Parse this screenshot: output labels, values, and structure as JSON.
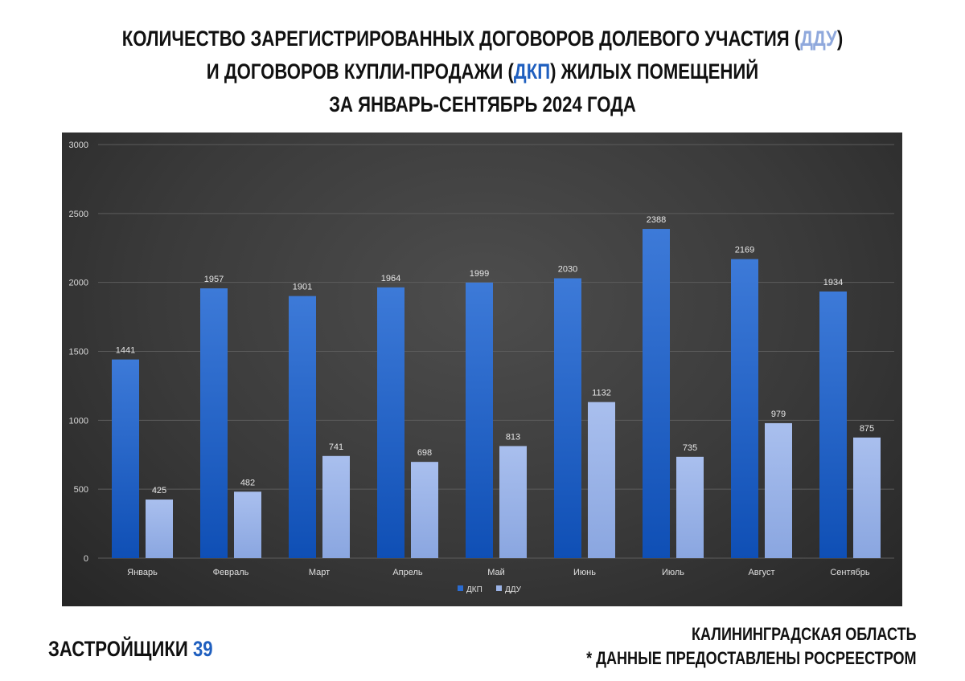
{
  "title": {
    "line1_pre": "КОЛИЧЕСТВО ЗАРЕГИСТРИРОВАННЫХ ДОГОВОРОВ ДОЛЕВОГО УЧАСТИЯ (",
    "line1_hl": "ДДУ",
    "line1_post": ")",
    "line2_pre": "И ДОГОВОРОВ КУПЛИ-ПРОДАЖИ (",
    "line2_hl": "ДКП",
    "line2_post": ") ЖИЛЫХ ПОМЕЩЕНИЙ",
    "line3": "ЗА ЯНВАРЬ-СЕНТЯБРЬ 2024 ГОДА"
  },
  "footer": {
    "brand_text": "ЗАСТРОЙЩИКИ",
    "brand_number": "39",
    "region": "КАЛИНИНГРАДСКАЯ ОБЛАСТЬ",
    "source_note": "* ДАННЫЕ ПРЕДОСТАВЛЕНЫ РОСРЕЕСТРОМ"
  },
  "colors": {
    "dkp": "#2a6bd0",
    "ddu": "#9bb3e6",
    "title_dkp": "#1f5fbf",
    "title_ddu": "#8fa8dc"
  },
  "chart_data": {
    "type": "bar",
    "categories": [
      "Январь",
      "Февраль",
      "Март",
      "Апрель",
      "Май",
      "Июнь",
      "Июль",
      "Август",
      "Сентябрь"
    ],
    "series": [
      {
        "name": "ДКП",
        "values": [
          1441,
          1957,
          1901,
          1964,
          1999,
          2030,
          2388,
          2169,
          1934
        ]
      },
      {
        "name": "ДДУ",
        "values": [
          425,
          482,
          741,
          698,
          813,
          1132,
          735,
          979,
          875
        ]
      }
    ],
    "ylim": [
      0,
      3000
    ],
    "yticks": [
      0,
      500,
      1000,
      1500,
      2000,
      2500,
      3000
    ],
    "grid": true,
    "legend": "bottom-center",
    "data_labels": true
  }
}
